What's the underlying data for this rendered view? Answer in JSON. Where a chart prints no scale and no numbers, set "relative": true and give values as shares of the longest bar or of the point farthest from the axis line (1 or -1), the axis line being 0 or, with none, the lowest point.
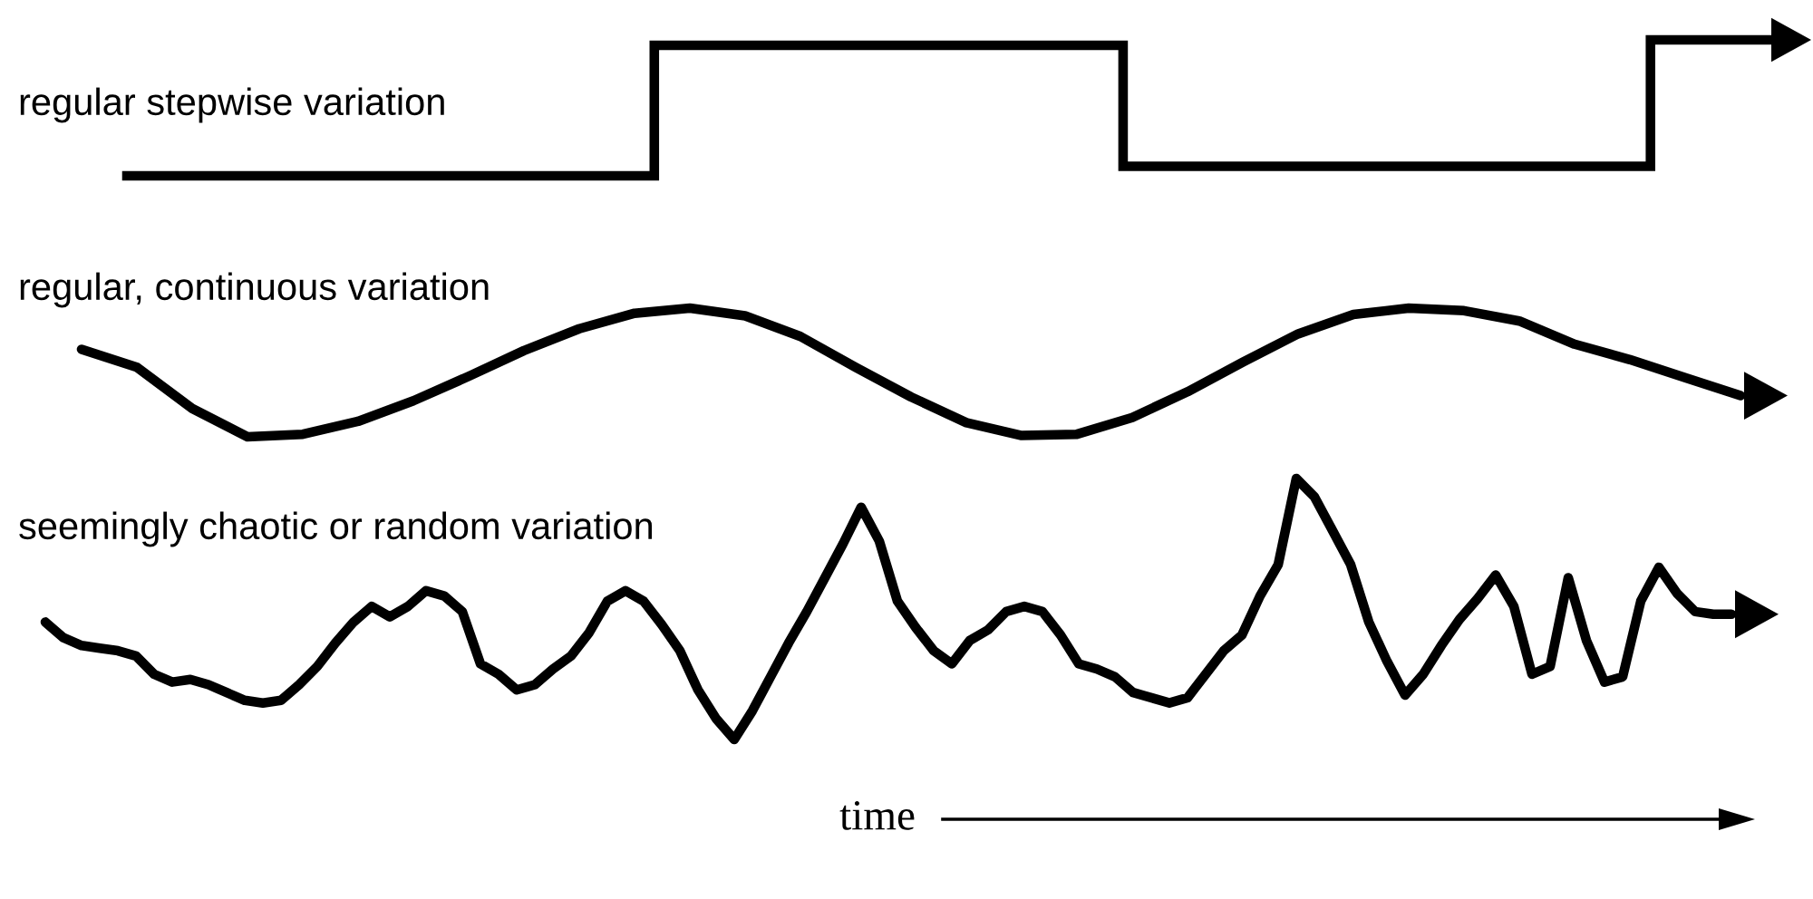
{
  "chart_data": [
    {
      "type": "step",
      "title": "regular stepwise variation",
      "relative": true,
      "color": "#000000",
      "categories": [
        null,
        null,
        null,
        null,
        null,
        null,
        null,
        null,
        null,
        null,
        null,
        null,
        null,
        null,
        null,
        null,
        null,
        null,
        null,
        null,
        null,
        null,
        null,
        null,
        null,
        null,
        null,
        null,
        null
      ],
      "values": [
        0,
        0,
        0,
        0,
        0,
        0,
        0,
        0,
        0,
        0.96,
        0.96,
        0.96,
        0.96,
        0.96,
        0.96,
        0.96,
        0.96,
        0.07,
        0.07,
        0.07,
        0.07,
        0.07,
        0.07,
        0.07,
        0.07,
        0.07,
        1,
        1,
        1
      ]
    },
    {
      "type": "line",
      "title": "regular, continuous variation",
      "relative": true,
      "color": "#000000",
      "categories": [
        null,
        null,
        null,
        null,
        null,
        null,
        null,
        null,
        null,
        null,
        null,
        null,
        null,
        null,
        null,
        null,
        null,
        null,
        null,
        null,
        null,
        null,
        null,
        null,
        null,
        null,
        null,
        null,
        null,
        null,
        null
      ],
      "values": [
        0.68,
        0.54,
        0.22,
        0,
        0.02,
        0.12,
        0.28,
        0.47,
        0.67,
        0.84,
        0.96,
        1,
        0.94,
        0.78,
        0.54,
        0.31,
        0.11,
        0.01,
        0.02,
        0.15,
        0.35,
        0.58,
        0.8,
        0.95,
        1,
        0.98,
        0.9,
        0.72,
        0.6,
        0.46,
        0.32
      ]
    },
    {
      "type": "line",
      "title": "seemingly chaotic or random variation",
      "xlabel": "time",
      "relative": true,
      "color": "#000000",
      "categories": [
        null,
        null,
        null,
        null,
        null,
        null,
        null,
        null,
        null,
        null,
        null,
        null,
        null,
        null,
        null,
        null,
        null,
        null,
        null,
        null,
        null,
        null,
        null,
        null,
        null,
        null,
        null,
        null,
        null,
        null,
        null,
        null,
        null,
        null,
        null,
        null,
        null,
        null,
        null,
        null,
        null,
        null,
        null,
        null,
        null,
        null,
        null,
        null,
        null,
        null,
        null,
        null,
        null,
        null,
        null,
        null,
        null,
        null,
        null,
        null,
        null,
        null,
        null,
        null,
        null,
        null,
        null,
        null,
        null,
        null,
        null,
        null,
        null,
        null,
        null,
        null,
        null,
        null,
        null,
        null,
        null,
        null,
        null,
        null,
        null,
        null,
        null,
        null,
        null,
        null,
        null,
        null,
        null,
        null
      ],
      "values": [
        0.45,
        0.39,
        0.36,
        0.35,
        0.34,
        0.32,
        0.25,
        0.22,
        0.23,
        0.21,
        0.18,
        0.15,
        0.14,
        0.15,
        0.21,
        0.28,
        0.37,
        0.45,
        0.51,
        0.47,
        0.51,
        0.57,
        0.55,
        0.49,
        0.29,
        0.25,
        0.19,
        0.21,
        0.27,
        0.32,
        0.41,
        0.53,
        0.57,
        0.53,
        0.44,
        0.34,
        0.19,
        0.08,
        0,
        0.11,
        0.24,
        0.37,
        0.49,
        0.62,
        0.75,
        0.89,
        0.76,
        0.53,
        0.43,
        0.34,
        0.29,
        0.38,
        0.42,
        0.49,
        0.51,
        0.49,
        0.4,
        0.29,
        0.27,
        0.24,
        0.18,
        0.16,
        0.14,
        0.16,
        0.25,
        0.34,
        0.4,
        0.55,
        0.67,
        1,
        0.93,
        0.8,
        0.67,
        0.45,
        0.3,
        0.17,
        0.25,
        0.36,
        0.46,
        0.54,
        0.63,
        0.51,
        0.25,
        0.28,
        0.62,
        0.38,
        0.22,
        0.24,
        0.53,
        0.66,
        0.56,
        0.49,
        0.48,
        0.48
      ]
    }
  ]
}
